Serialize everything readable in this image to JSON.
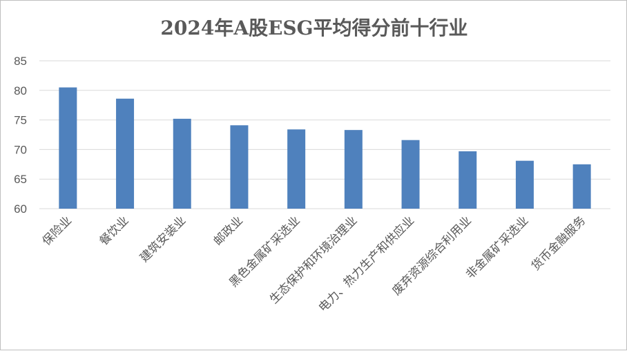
{
  "chart_data": {
    "type": "bar",
    "title": "2024年A股ESG平均得分前十行业",
    "xlabel": "",
    "ylabel": "",
    "ylim": [
      60,
      85
    ],
    "yticks": [
      60,
      65,
      70,
      75,
      80,
      85
    ],
    "grid": true,
    "legend": "none",
    "categories": [
      "保险业",
      "餐饮业",
      "建筑安装业",
      "邮政业",
      "黑色金属矿采选业",
      "生态保护和环境治理业",
      "电力、热力生产和供应业",
      "废弃资源综合利用业",
      "非金属矿采选业",
      "货币金融服务"
    ],
    "values": [
      80.5,
      78.6,
      75.2,
      74.1,
      73.4,
      73.3,
      71.6,
      69.7,
      68.1,
      67.5
    ],
    "colors": {
      "bar": "#4f81bd",
      "grid": "#d9d9d9",
      "text": "#595959"
    }
  }
}
